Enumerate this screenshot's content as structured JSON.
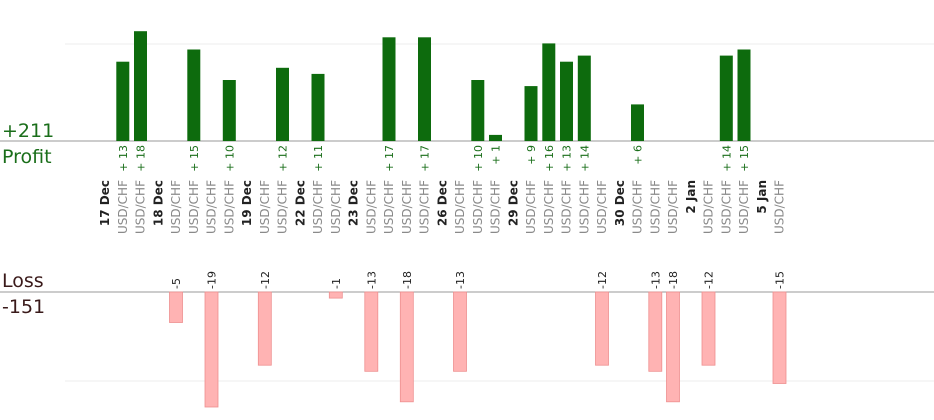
{
  "summary": {
    "profit_total": "+211",
    "profit_label": "Profit",
    "loss_label": "Loss",
    "loss_total": "-151"
  },
  "colors": {
    "profit_bar": "#0d6b0d",
    "loss_bar": "#ffb3b3",
    "profit_text": "#1a6e1a"
  },
  "chart_data": {
    "type": "bar",
    "title": "",
    "xlabel": "",
    "ylabel": "",
    "pair": "USD/CHF",
    "slots": [
      {
        "kind": "date",
        "label": "17 Dec"
      },
      {
        "kind": "trade",
        "value": 13
      },
      {
        "kind": "trade",
        "value": 18
      },
      {
        "kind": "date",
        "label": "18 Dec"
      },
      {
        "kind": "trade",
        "value": -5
      },
      {
        "kind": "trade",
        "value": 15
      },
      {
        "kind": "trade",
        "value": -19
      },
      {
        "kind": "trade",
        "value": 10
      },
      {
        "kind": "date",
        "label": "19 Dec"
      },
      {
        "kind": "trade",
        "value": -12
      },
      {
        "kind": "trade",
        "value": 12
      },
      {
        "kind": "date",
        "label": "22 Dec"
      },
      {
        "kind": "trade",
        "value": 11
      },
      {
        "kind": "trade",
        "value": -1
      },
      {
        "kind": "date",
        "label": "23 Dec"
      },
      {
        "kind": "trade",
        "value": -13
      },
      {
        "kind": "trade",
        "value": 17
      },
      {
        "kind": "trade",
        "value": -18
      },
      {
        "kind": "trade",
        "value": 17
      },
      {
        "kind": "date",
        "label": "26 Dec"
      },
      {
        "kind": "trade",
        "value": -13
      },
      {
        "kind": "trade",
        "value": 10
      },
      {
        "kind": "trade",
        "value": 1
      },
      {
        "kind": "date",
        "label": "29 Dec"
      },
      {
        "kind": "trade",
        "value": 9
      },
      {
        "kind": "trade",
        "value": 16
      },
      {
        "kind": "trade",
        "value": 13
      },
      {
        "kind": "trade",
        "value": 14
      },
      {
        "kind": "trade",
        "value": -12
      },
      {
        "kind": "date",
        "label": "30 Dec"
      },
      {
        "kind": "trade",
        "value": 6
      },
      {
        "kind": "trade",
        "value": -13
      },
      {
        "kind": "trade",
        "value": -18
      },
      {
        "kind": "date",
        "label": "2 Jan"
      },
      {
        "kind": "trade",
        "value": -12
      },
      {
        "kind": "trade",
        "value": 14
      },
      {
        "kind": "trade",
        "value": 15
      },
      {
        "kind": "date",
        "label": "5 Jan"
      },
      {
        "kind": "trade",
        "value": -15
      }
    ]
  }
}
